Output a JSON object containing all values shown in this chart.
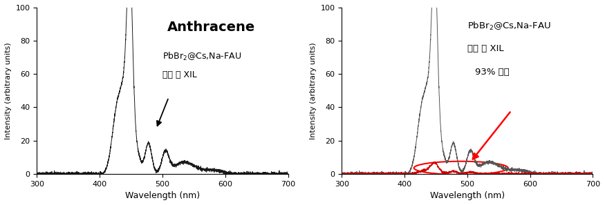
{
  "xlim": [
    300,
    700
  ],
  "ylim": [
    0,
    100
  ],
  "xlabel": "Wavelength (nm)",
  "ylabel": "Intensity (arbitrary units)",
  "xticks": [
    300,
    400,
    500,
    600,
    700
  ],
  "yticks": [
    0,
    20,
    40,
    60,
    80,
    100
  ],
  "left_title": "Anthracene",
  "left_sub": "PbBr₂@Cs,Na-FAU\n차폐 전 XIL",
  "right_sub": "PbBr₂@Cs,Na-FAU\n차폐 후 XIL\n93% 차폐",
  "line_color_dark": "#1a1a1a",
  "line_color_gray": "#555555",
  "line_color_red": "#cc0000",
  "bg_color": "#ffffff"
}
